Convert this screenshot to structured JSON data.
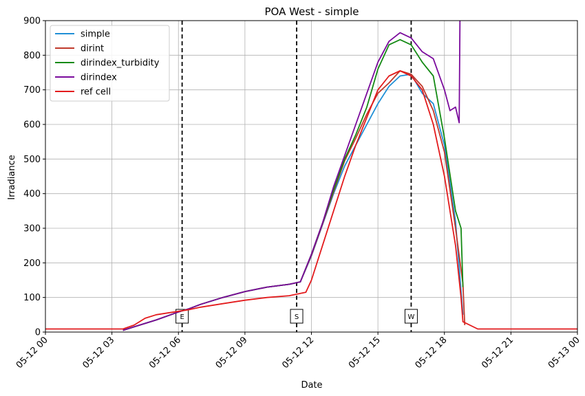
{
  "chart_data": {
    "type": "line",
    "title": "POA West - simple",
    "xlabel": "Date",
    "ylabel": "Irradiance",
    "xlim": [
      "05-12 00:00",
      "05-13 00:00"
    ],
    "ylim": [
      0,
      900
    ],
    "x_ticks": [
      "05-12 00",
      "05-12 03",
      "05-12 06",
      "05-12 09",
      "05-12 12",
      "05-12 15",
      "05-12 18",
      "05-12 21",
      "05-13 00"
    ],
    "y_ticks": [
      0,
      100,
      200,
      300,
      400,
      500,
      600,
      700,
      800,
      900
    ],
    "grid": true,
    "legend_position": "top-left",
    "markers": [
      {
        "label": "E",
        "time": "05-12 06:10"
      },
      {
        "label": "S",
        "time": "05-12 11:20"
      },
      {
        "label": "W",
        "time": "05-12 16:30"
      }
    ],
    "series": [
      {
        "name": "simple",
        "color": "#1f8fd6",
        "points": [
          [
            "05-12 03:30",
            5
          ],
          [
            "05-12 04:00",
            15
          ],
          [
            "05-12 05:00",
            35
          ],
          [
            "05-12 06:00",
            58
          ],
          [
            "05-12 06:30",
            68
          ],
          [
            "05-12 07:00",
            80
          ],
          [
            "05-12 08:00",
            100
          ],
          [
            "05-12 09:00",
            117
          ],
          [
            "05-12 10:00",
            130
          ],
          [
            "05-12 11:00",
            138
          ],
          [
            "05-12 11:30",
            145
          ],
          [
            "05-12 12:00",
            220
          ],
          [
            "05-12 12:30",
            310
          ],
          [
            "05-12 13:00",
            400
          ],
          [
            "05-12 13:30",
            480
          ],
          [
            "05-12 14:00",
            540
          ],
          [
            "05-12 14:30",
            600
          ],
          [
            "05-12 15:00",
            660
          ],
          [
            "05-12 15:30",
            710
          ],
          [
            "05-12 16:00",
            740
          ],
          [
            "05-12 16:30",
            745
          ],
          [
            "05-12 17:00",
            690
          ],
          [
            "05-12 17:30",
            660
          ],
          [
            "05-12 18:00",
            540
          ],
          [
            "05-12 18:30",
            320
          ],
          [
            "05-12 18:50",
            50
          ]
        ]
      },
      {
        "name": "dirint",
        "color": "#c0392b",
        "points": [
          [
            "05-12 03:30",
            5
          ],
          [
            "05-12 04:00",
            15
          ],
          [
            "05-12 05:00",
            35
          ],
          [
            "05-12 06:00",
            58
          ],
          [
            "05-12 06:30",
            68
          ],
          [
            "05-12 07:00",
            80
          ],
          [
            "05-12 08:00",
            100
          ],
          [
            "05-12 09:00",
            117
          ],
          [
            "05-12 10:00",
            130
          ],
          [
            "05-12 11:00",
            138
          ],
          [
            "05-12 11:30",
            145
          ],
          [
            "05-12 12:00",
            222
          ],
          [
            "05-12 12:30",
            312
          ],
          [
            "05-12 13:00",
            405
          ],
          [
            "05-12 13:30",
            495
          ],
          [
            "05-12 14:00",
            560
          ],
          [
            "05-12 14:30",
            630
          ],
          [
            "05-12 15:00",
            690
          ],
          [
            "05-12 15:30",
            720
          ],
          [
            "05-12 16:00",
            755
          ],
          [
            "05-12 16:30",
            745
          ],
          [
            "05-12 17:00",
            710
          ],
          [
            "05-12 17:30",
            640
          ],
          [
            "05-12 18:00",
            520
          ],
          [
            "05-12 18:30",
            300
          ],
          [
            "05-12 18:50",
            140
          ],
          [
            "05-12 18:55",
            20
          ]
        ]
      },
      {
        "name": "dirindex_turbidity",
        "color": "#138a13",
        "points": [
          [
            "05-12 03:30",
            5
          ],
          [
            "05-12 04:00",
            15
          ],
          [
            "05-12 05:00",
            35
          ],
          [
            "05-12 06:00",
            58
          ],
          [
            "05-12 06:30",
            68
          ],
          [
            "05-12 07:00",
            80
          ],
          [
            "05-12 08:00",
            100
          ],
          [
            "05-12 09:00",
            117
          ],
          [
            "05-12 10:00",
            130
          ],
          [
            "05-12 11:00",
            138
          ],
          [
            "05-12 11:30",
            145
          ],
          [
            "05-12 12:00",
            225
          ],
          [
            "05-12 12:30",
            315
          ],
          [
            "05-12 13:00",
            410
          ],
          [
            "05-12 13:30",
            500
          ],
          [
            "05-12 14:00",
            570
          ],
          [
            "05-12 14:30",
            650
          ],
          [
            "05-12 15:00",
            760
          ],
          [
            "05-12 15:30",
            830
          ],
          [
            "05-12 16:00",
            845
          ],
          [
            "05-12 16:30",
            830
          ],
          [
            "05-12 17:00",
            780
          ],
          [
            "05-12 17:30",
            740
          ],
          [
            "05-12 18:00",
            560
          ],
          [
            "05-12 18:30",
            350
          ],
          [
            "05-12 18:45",
            300
          ],
          [
            "05-12 18:50",
            130
          ]
        ]
      },
      {
        "name": "dirindex",
        "color": "#7a0a9c",
        "points": [
          [
            "05-12 03:30",
            5
          ],
          [
            "05-12 04:00",
            15
          ],
          [
            "05-12 05:00",
            35
          ],
          [
            "05-12 06:00",
            58
          ],
          [
            "05-12 06:30",
            68
          ],
          [
            "05-12 07:00",
            80
          ],
          [
            "05-12 08:00",
            100
          ],
          [
            "05-12 09:00",
            117
          ],
          [
            "05-12 10:00",
            130
          ],
          [
            "05-12 11:00",
            138
          ],
          [
            "05-12 11:30",
            145
          ],
          [
            "05-12 12:00",
            225
          ],
          [
            "05-12 12:30",
            315
          ],
          [
            "05-12 13:00",
            420
          ],
          [
            "05-12 13:30",
            510
          ],
          [
            "05-12 14:00",
            600
          ],
          [
            "05-12 14:30",
            690
          ],
          [
            "05-12 15:00",
            780
          ],
          [
            "05-12 15:30",
            840
          ],
          [
            "05-12 16:00",
            865
          ],
          [
            "05-12 16:30",
            850
          ],
          [
            "05-12 17:00",
            810
          ],
          [
            "05-12 17:30",
            790
          ],
          [
            "05-12 18:00",
            700
          ],
          [
            "05-12 18:15",
            640
          ],
          [
            "05-12 18:30",
            650
          ],
          [
            "05-12 18:40",
            605
          ],
          [
            "05-12 18:42",
            900
          ]
        ]
      },
      {
        "name": "ref cell",
        "color": "#e31a1c",
        "points": [
          [
            "05-12 00:00",
            9
          ],
          [
            "05-12 03:30",
            9
          ],
          [
            "05-12 04:00",
            20
          ],
          [
            "05-12 04:30",
            40
          ],
          [
            "05-12 05:00",
            50
          ],
          [
            "05-12 06:00",
            60
          ],
          [
            "05-12 06:30",
            65
          ],
          [
            "05-12 07:00",
            72
          ],
          [
            "05-12 08:00",
            82
          ],
          [
            "05-12 09:00",
            92
          ],
          [
            "05-12 10:00",
            100
          ],
          [
            "05-12 11:00",
            105
          ],
          [
            "05-12 11:45",
            115
          ],
          [
            "05-12 12:00",
            150
          ],
          [
            "05-12 12:30",
            250
          ],
          [
            "05-12 13:00",
            350
          ],
          [
            "05-12 13:30",
            450
          ],
          [
            "05-12 14:00",
            540
          ],
          [
            "05-12 14:30",
            620
          ],
          [
            "05-12 15:00",
            700
          ],
          [
            "05-12 15:30",
            740
          ],
          [
            "05-12 16:00",
            755
          ],
          [
            "05-12 16:30",
            740
          ],
          [
            "05-12 17:00",
            700
          ],
          [
            "05-12 17:30",
            600
          ],
          [
            "05-12 18:00",
            450
          ],
          [
            "05-12 18:30",
            250
          ],
          [
            "05-12 18:45",
            100
          ],
          [
            "05-12 18:50",
            30
          ],
          [
            "05-12 19:30",
            9
          ],
          [
            "05-13 00:00",
            9
          ]
        ]
      }
    ]
  }
}
